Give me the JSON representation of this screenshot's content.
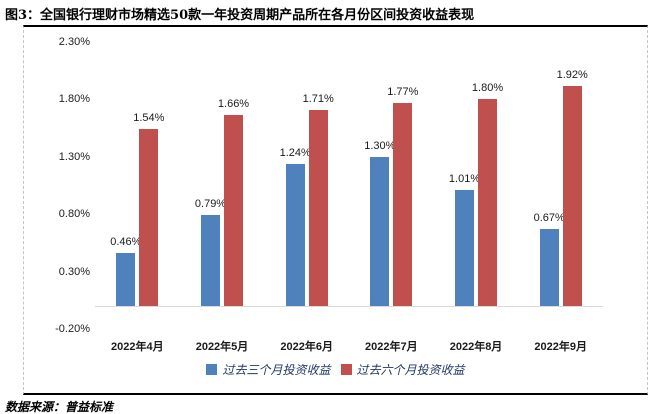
{
  "figure": {
    "title": "图3：全国银行理财市场精选50款一年投资周期产品所在各月份区间投资收益表现",
    "source": "数据来源：普益标准"
  },
  "chart_data": {
    "type": "bar",
    "title": "图3：全国银行理财市场精选50款一年投资周期产品所在各月份区间投资收益表现",
    "categories": [
      "2022年4月",
      "2022年5月",
      "2022年6月",
      "2022年7月",
      "2022年8月",
      "2022年9月"
    ],
    "series": [
      {
        "name": "过去三个月投资收益",
        "color": "#4F81BD",
        "values": [
          0.46,
          0.79,
          1.24,
          1.3,
          1.01,
          0.67
        ],
        "labels": [
          "0.46%",
          "0.79%",
          "1.24%",
          "1.30%",
          "1.01%",
          "0.67%"
        ]
      },
      {
        "name": "过去六个月投资收益",
        "color": "#C0504D",
        "values": [
          1.54,
          1.66,
          1.71,
          1.77,
          1.8,
          1.92
        ],
        "labels": [
          "1.54%",
          "1.66%",
          "1.71%",
          "1.77%",
          "1.80%",
          "1.92%"
        ]
      }
    ],
    "y_ticks": [
      {
        "label": "2.30%",
        "value": 2.3
      },
      {
        "label": "1.80%",
        "value": 1.8
      },
      {
        "label": "1.30%",
        "value": 1.3
      },
      {
        "label": "0.80%",
        "value": 0.8
      },
      {
        "label": "0.30%",
        "value": 0.3
      },
      {
        "label": "-0.20%",
        "value": -0.2
      }
    ],
    "ylim": [
      -0.2,
      2.3
    ],
    "grid": false,
    "legend_position": "bottom",
    "data_labels": true
  }
}
